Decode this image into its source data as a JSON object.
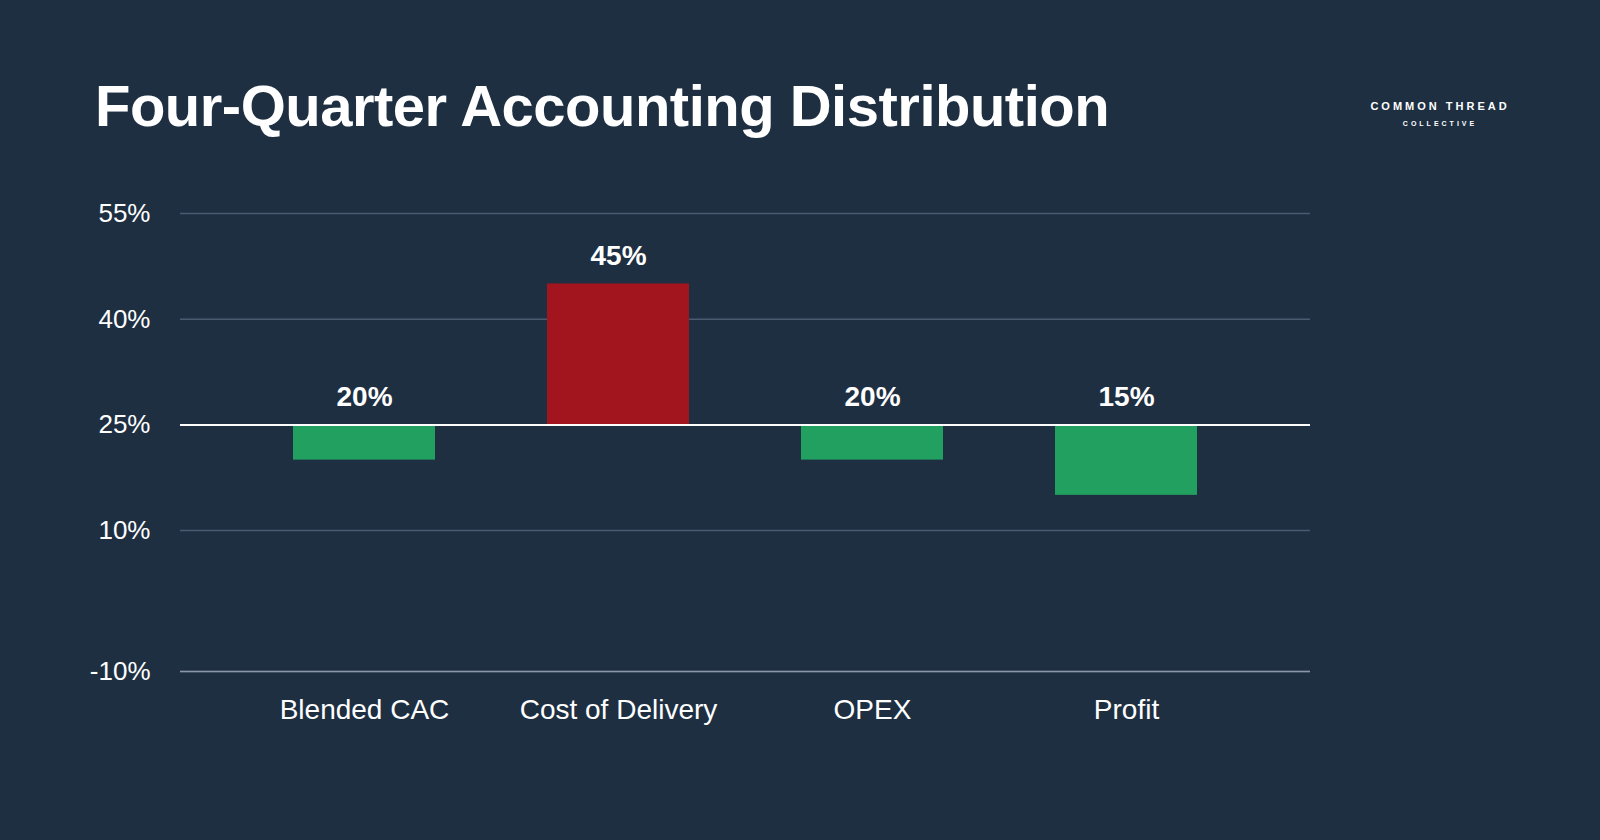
{
  "chart_data": {
    "type": "bar",
    "title": "Four-Quarter Accounting Distribution",
    "annotations": [
      "COMMON THREAD",
      "COLLECTIVE"
    ],
    "categories": [
      "Blended CAC",
      "Cost of Delivery",
      "OPEX",
      "Profit"
    ],
    "values": [
      20,
      45,
      20,
      15
    ],
    "value_labels": [
      "20%",
      "45%",
      "20%",
      "15%"
    ],
    "baseline": 25,
    "colors": [
      "#22a060",
      "#a3151e",
      "#22a060",
      "#22a060"
    ],
    "ylim": [
      -10,
      55
    ],
    "yticks": [
      {
        "value": -10,
        "label": "-10%"
      },
      {
        "value": 10,
        "label": "10%"
      },
      {
        "value": 25,
        "label": "25%"
      },
      {
        "value": 40,
        "label": "40%"
      },
      {
        "value": 55,
        "label": "55%"
      }
    ],
    "grid": true,
    "data_labels": true
  }
}
